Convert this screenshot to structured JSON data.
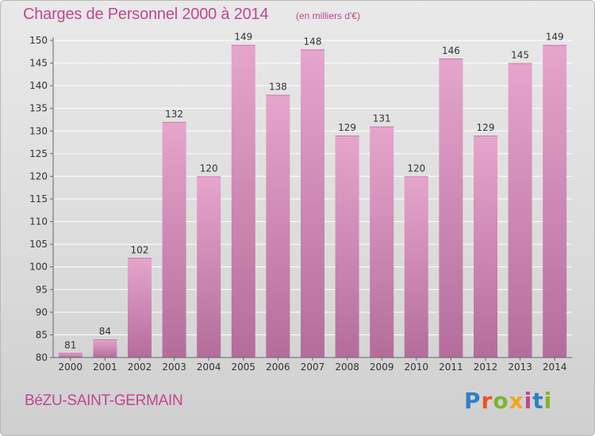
{
  "header": {
    "title": "Charges de Personnel 2000 à 2014",
    "unit": "(en milliers d'€)"
  },
  "footer": {
    "commune": "BéZU-SAINT-GERMAIN",
    "brand": "Proxiti",
    "brand_colors": [
      "#2e7fc4",
      "#e8552d",
      "#7bb531",
      "#f2a51a",
      "#c0478f",
      "#2e7fc4",
      "#7bb531"
    ]
  },
  "colors": {
    "accent": "#c0478f",
    "bar_top": "#e6a5cc",
    "bar_bottom": "#b46d9b",
    "grid": "#ffffff",
    "axis": "#666666"
  },
  "chart_data": {
    "type": "bar",
    "title": "Charges de Personnel 2000 à 2014",
    "subtitle": "(en milliers d'€)",
    "xlabel": "",
    "ylabel": "",
    "categories": [
      "2000",
      "2001",
      "2002",
      "2003",
      "2004",
      "2005",
      "2006",
      "2007",
      "2008",
      "2009",
      "2010",
      "2011",
      "2012",
      "2013",
      "2014"
    ],
    "values": [
      81,
      84,
      102,
      132,
      120,
      149,
      138,
      148,
      129,
      131,
      120,
      146,
      129,
      145,
      149
    ],
    "ylim": [
      80,
      150
    ],
    "yticks": [
      80,
      85,
      90,
      95,
      100,
      105,
      110,
      115,
      120,
      125,
      130,
      135,
      140,
      145,
      150
    ],
    "grid": true,
    "legend": "none"
  }
}
